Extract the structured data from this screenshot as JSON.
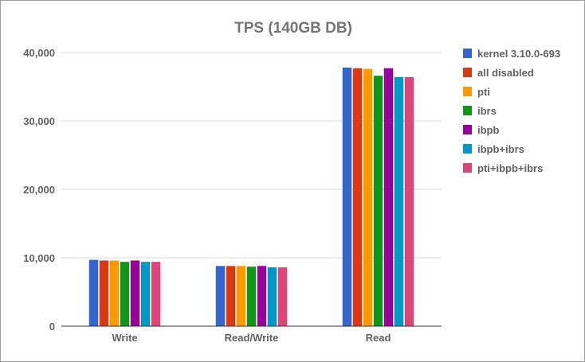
{
  "chart_data": {
    "type": "bar",
    "title": "TPS (140GB DB)",
    "xlabel": "",
    "ylabel": "",
    "ylim": [
      0,
      40000
    ],
    "yticks": [
      0,
      10000,
      20000,
      30000,
      40000
    ],
    "ytick_labels": [
      "0",
      "10,000",
      "20,000",
      "30,000",
      "40,000"
    ],
    "grid": true,
    "legend_position": "right",
    "categories": [
      "Write",
      "Read/Write",
      "Read"
    ],
    "series": [
      {
        "name": "kernel 3.10.0-693",
        "color": "#3366cc",
        "values": [
          9700,
          8800,
          37800
        ]
      },
      {
        "name": "all disabled",
        "color": "#dc3912",
        "values": [
          9600,
          8800,
          37700
        ]
      },
      {
        "name": "pti",
        "color": "#ff9900",
        "values": [
          9600,
          8800,
          37600
        ]
      },
      {
        "name": "ibrs",
        "color": "#109618",
        "values": [
          9400,
          8700,
          36600
        ]
      },
      {
        "name": "ibpb",
        "color": "#990099",
        "values": [
          9600,
          8800,
          37700
        ]
      },
      {
        "name": "ibpb+ibrs",
        "color": "#0099c6",
        "values": [
          9400,
          8600,
          36400
        ]
      },
      {
        "name": "pti+ibpb+ibrs",
        "color": "#dd4477",
        "values": [
          9400,
          8600,
          36400
        ]
      }
    ]
  }
}
